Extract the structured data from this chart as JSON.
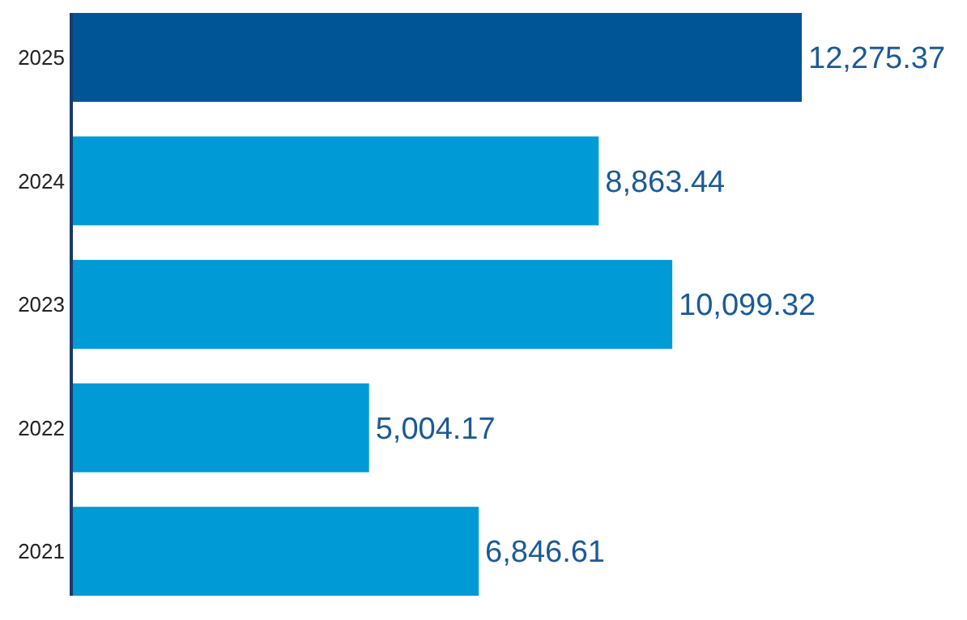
{
  "chart_data": {
    "type": "bar",
    "orientation": "horizontal",
    "categories": [
      "2025",
      "2024",
      "2023",
      "2022",
      "2021"
    ],
    "values": [
      12275.37,
      8863.44,
      10099.32,
      5004.17,
      6846.61
    ],
    "value_labels": [
      "12,275.37",
      "8,863.44",
      "10,099.32",
      "5,004.17",
      "6,846.61"
    ],
    "colors": [
      "#005596",
      "#009ad6",
      "#009ad6",
      "#009ad6",
      "#009ad6"
    ]
  }
}
